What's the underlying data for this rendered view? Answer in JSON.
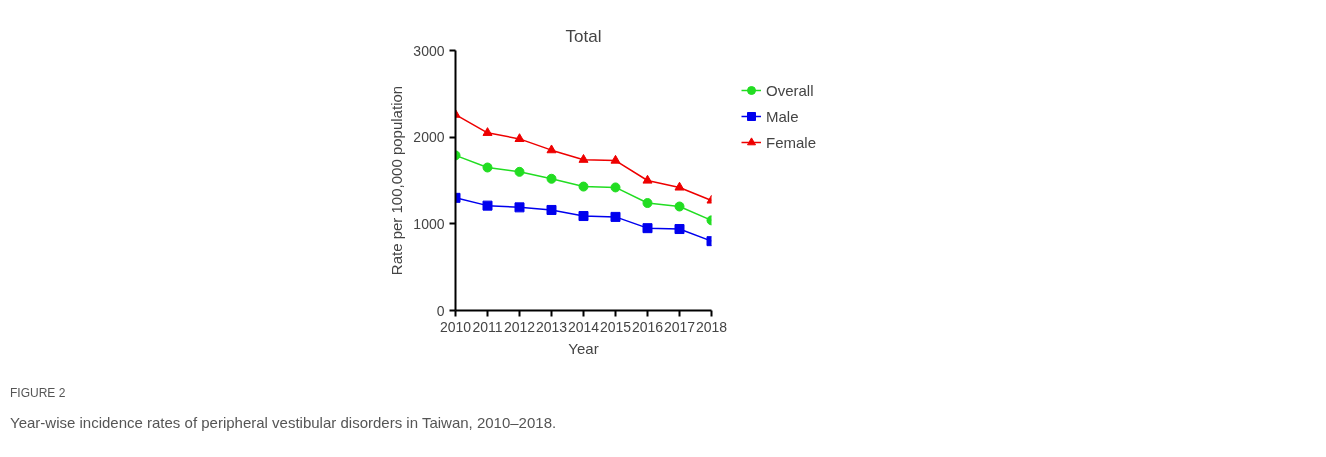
{
  "chart_data": {
    "type": "line",
    "title": "Total",
    "xlabel": "Year",
    "ylabel": "Rate per 100,000 population",
    "x": [
      2010,
      2011,
      2012,
      2013,
      2014,
      2015,
      2016,
      2017,
      2018
    ],
    "series": [
      {
        "name": "Overall",
        "color": "#22dd22",
        "marker": "circle",
        "values": [
          1790,
          1650,
          1600,
          1520,
          1430,
          1420,
          1240,
          1200,
          1040
        ]
      },
      {
        "name": "Male",
        "color": "#0000ee",
        "marker": "square",
        "values": [
          1300,
          1210,
          1190,
          1160,
          1090,
          1080,
          950,
          940,
          800
        ]
      },
      {
        "name": "Female",
        "color": "#ee0000",
        "marker": "triangle",
        "values": [
          2260,
          2050,
          1980,
          1850,
          1740,
          1730,
          1500,
          1420,
          1270
        ]
      }
    ],
    "xlim": [
      2010,
      2018
    ],
    "ylim": [
      0,
      3000
    ],
    "xticks": [
      2010,
      2011,
      2012,
      2013,
      2014,
      2015,
      2016,
      2017,
      2018
    ],
    "yticks": [
      0,
      1000,
      2000,
      3000
    ],
    "grid": false,
    "legend": "right",
    "line_style": "solid",
    "annotations": [
      "FIGURE 2",
      "Year-wise incidence rates of peripheral vestibular disorders in Taiwan, 2010–2018."
    ]
  }
}
